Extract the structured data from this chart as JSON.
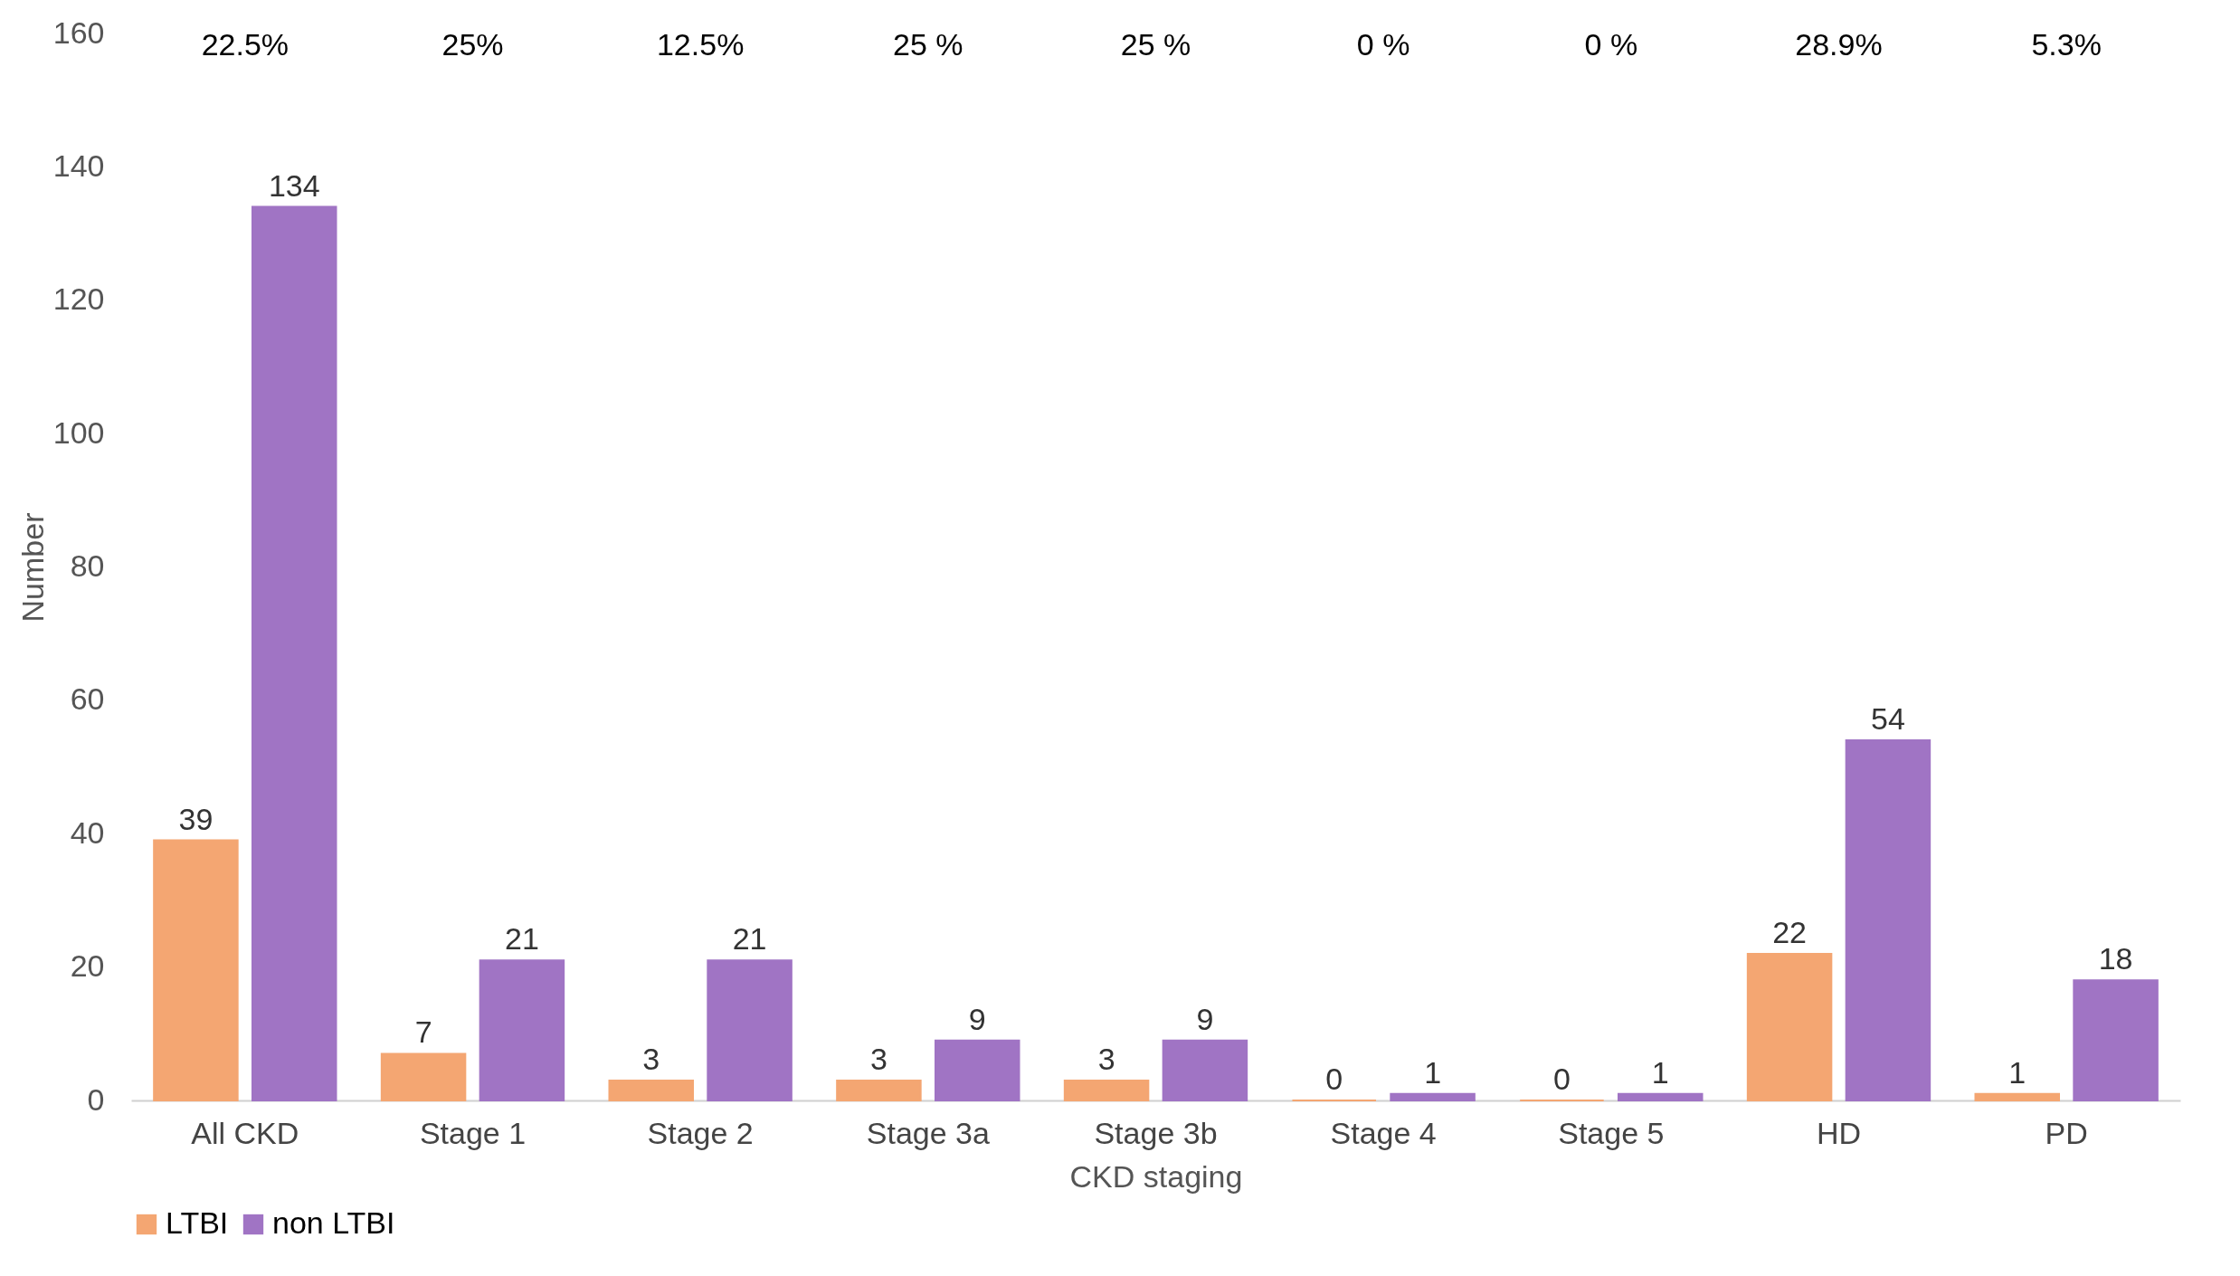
{
  "chart_data": {
    "type": "bar",
    "xlabel": "CKD staging",
    "ylabel": "Number",
    "categories": [
      "All CKD",
      "Stage 1",
      "Stage 2",
      "Stage 3a",
      "Stage 3b",
      "Stage 4",
      "Stage 5",
      "HD",
      "PD"
    ],
    "series": [
      {
        "name": "LTBI",
        "color": "#f4a672",
        "values": [
          39,
          7,
          3,
          3,
          3,
          0,
          0,
          22,
          1
        ]
      },
      {
        "name": "non LTBI",
        "color": "#a074c4",
        "values": [
          134,
          21,
          21,
          9,
          9,
          1,
          1,
          54,
          18
        ]
      }
    ],
    "ylim": [
      0,
      160
    ],
    "yticks": [
      0,
      20,
      40,
      60,
      80,
      100,
      120,
      140,
      160
    ],
    "grid": false,
    "legend": "bottom",
    "data_labels": true,
    "annotations": [
      "22.5%",
      "25%",
      "12.5%",
      "25 %",
      "25 %",
      "0 %",
      "0 %",
      "28.9%",
      "5.3%"
    ]
  }
}
